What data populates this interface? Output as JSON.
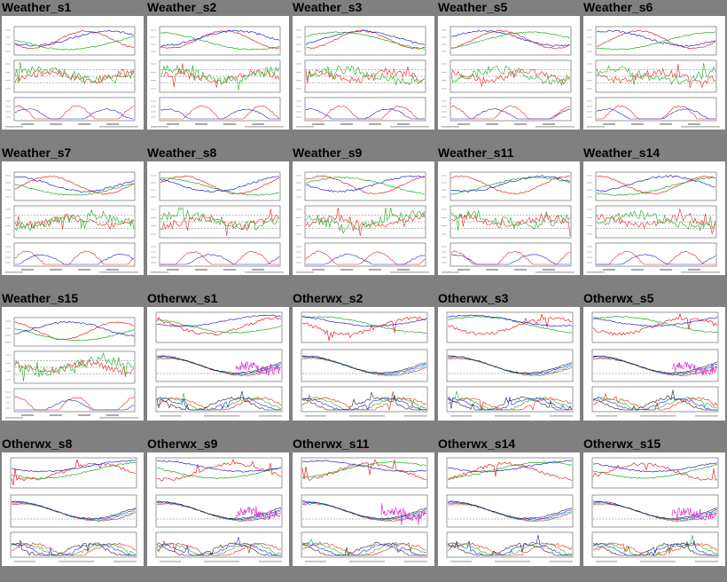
{
  "tiles": [
    {
      "title": "Weather_s1",
      "kind": "weather"
    },
    {
      "title": "Weather_s2",
      "kind": "weather"
    },
    {
      "title": "Weather_s3",
      "kind": "weather"
    },
    {
      "title": "Weather_s5",
      "kind": "weather"
    },
    {
      "title": "Weather_s6",
      "kind": "weather"
    },
    {
      "title": "Weather_s7",
      "kind": "weather"
    },
    {
      "title": "Weather_s8",
      "kind": "weather"
    },
    {
      "title": "Weather_s9",
      "kind": "weather"
    },
    {
      "title": "Weather_s11",
      "kind": "weather"
    },
    {
      "title": "Weather_s14",
      "kind": "weather"
    },
    {
      "title": "Weather_s15",
      "kind": "weather"
    },
    {
      "title": "Otherwx_s1",
      "kind": "otherwx"
    },
    {
      "title": "Otherwx_s2",
      "kind": "otherwx"
    },
    {
      "title": "Otherwx_s3",
      "kind": "otherwx"
    },
    {
      "title": "Otherwx_s5",
      "kind": "otherwx"
    },
    {
      "title": "Otherwx_s8",
      "kind": "otherwx"
    },
    {
      "title": "Otherwx_s9",
      "kind": "otherwx"
    },
    {
      "title": "Otherwx_s11",
      "kind": "otherwx"
    },
    {
      "title": "Otherwx_s14",
      "kind": "otherwx"
    },
    {
      "title": "Otherwx_s15",
      "kind": "otherwx"
    }
  ],
  "colors": {
    "background": "#808080",
    "thumbnail": "#ffffff",
    "series_red": "#e8231e",
    "series_green": "#1faa1f",
    "series_blue": "#2323d2",
    "series_cyan": "#19bcd2",
    "series_magenta": "#d21ed2"
  }
}
